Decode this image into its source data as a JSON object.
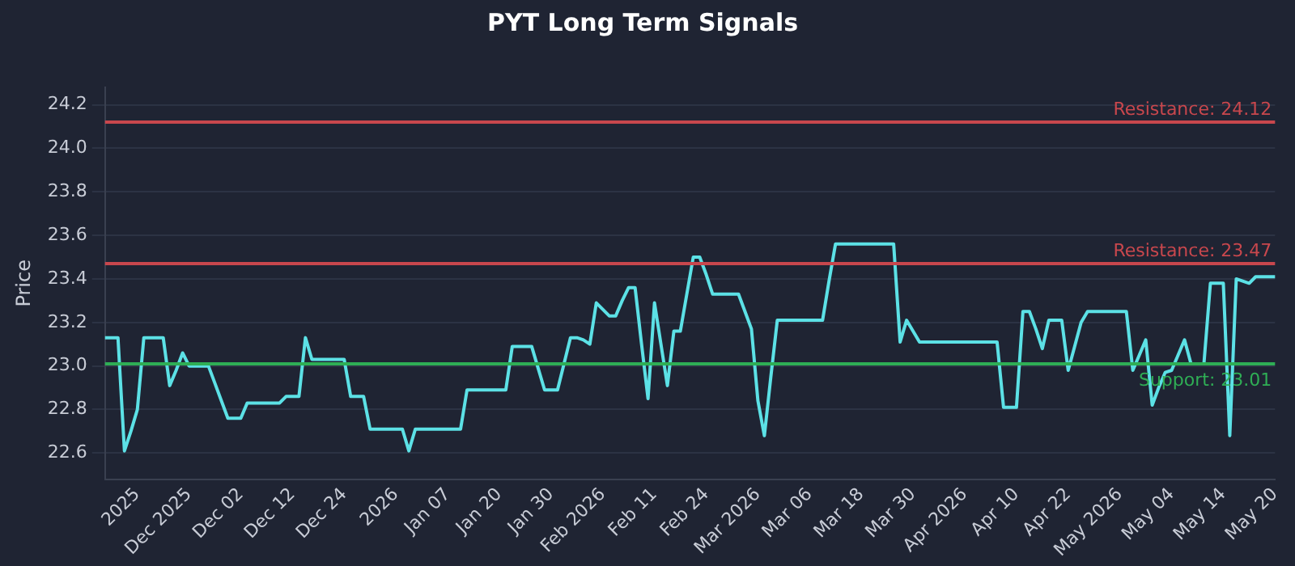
{
  "chart_data": {
    "type": "line",
    "title": "PYT Long Term Signals",
    "ylabel": "Price",
    "categories": [
      null,
      null,
      null,
      null,
      null,
      "2025",
      null,
      null,
      null,
      null,
      null,
      null,
      null,
      "Dec 2025",
      null,
      null,
      null,
      null,
      null,
      null,
      null,
      "Dec 02",
      null,
      null,
      null,
      null,
      null,
      null,
      null,
      "Dec 12",
      null,
      null,
      null,
      null,
      null,
      null,
      null,
      "Dec 24",
      null,
      null,
      null,
      null,
      null,
      null,
      null,
      "2026",
      null,
      null,
      null,
      null,
      null,
      null,
      null,
      "Jan 07",
      null,
      null,
      null,
      null,
      null,
      null,
      null,
      "Jan 20",
      null,
      null,
      null,
      null,
      null,
      null,
      null,
      "Jan 30",
      null,
      null,
      null,
      null,
      null,
      null,
      null,
      "Feb 2026",
      null,
      null,
      null,
      null,
      null,
      null,
      null,
      "Feb 11",
      null,
      null,
      null,
      null,
      null,
      null,
      null,
      "Feb 24",
      null,
      null,
      null,
      null,
      null,
      null,
      null,
      "Mar 2026",
      null,
      null,
      null,
      null,
      null,
      null,
      null,
      "Mar 06",
      null,
      null,
      null,
      null,
      null,
      null,
      null,
      "Mar 18",
      null,
      null,
      null,
      null,
      null,
      null,
      null,
      "Mar 30",
      null,
      null,
      null,
      null,
      null,
      null,
      null,
      "Apr 2026",
      null,
      null,
      null,
      null,
      null,
      null,
      null,
      "Apr 10",
      null,
      null,
      null,
      null,
      null,
      null,
      null,
      "Apr 22",
      null,
      null,
      null,
      null,
      null,
      null,
      null,
      "May 2026",
      null,
      null,
      null,
      null,
      null,
      null,
      null,
      "May 04",
      null,
      null,
      null,
      null,
      null,
      null,
      null,
      "May 14",
      null,
      null,
      null,
      null,
      null,
      null,
      null,
      "May 20"
    ],
    "ylim": [
      22.48,
      24.28
    ],
    "yticks": [
      22.6,
      22.8,
      {
        "value": 23,
        "label": "23.0"
      },
      23.2,
      23.4,
      23.6,
      23.8,
      {
        "value": 24,
        "label": "24.0"
      },
      24.2
    ],
    "grid": "y",
    "legend": false,
    "marker": "none",
    "line_style": "solid",
    "series": [
      {
        "color": "#5ce1e6",
        "values": [
          23.13,
          23.13,
          23.13,
          22.61,
          22.7,
          22.8,
          23.13,
          23.13,
          23.13,
          23.13,
          22.91,
          22.98,
          23.06,
          23.0,
          23.0,
          23.0,
          23.0,
          22.92,
          22.84,
          22.76,
          22.76,
          22.76,
          22.83,
          22.83,
          22.83,
          22.83,
          22.83,
          22.83,
          22.86,
          22.86,
          22.86,
          23.13,
          23.03,
          23.03,
          23.03,
          23.03,
          23.03,
          23.03,
          22.86,
          22.86,
          22.86,
          22.71,
          22.71,
          22.71,
          22.71,
          22.71,
          22.71,
          22.61,
          22.71,
          22.71,
          22.71,
          22.71,
          22.71,
          22.71,
          22.71,
          22.71,
          22.89,
          22.89,
          22.89,
          22.89,
          22.89,
          22.89,
          22.89,
          23.09,
          23.09,
          23.09,
          23.09,
          22.99,
          22.89,
          22.89,
          22.89,
          23.01,
          23.13,
          23.13,
          23.12,
          23.1,
          23.29,
          23.26,
          23.23,
          23.23,
          23.3,
          23.36,
          23.36,
          23.1,
          22.85,
          23.29,
          23.1,
          22.91,
          23.16,
          23.16,
          23.33,
          23.5,
          23.5,
          23.42,
          23.33,
          23.33,
          23.33,
          23.33,
          23.33,
          23.25,
          23.17,
          22.84,
          22.68,
          22.95,
          23.21,
          23.21,
          23.21,
          23.21,
          23.21,
          23.21,
          23.21,
          23.21,
          23.39,
          23.56,
          23.56,
          23.56,
          23.56,
          23.56,
          23.56,
          23.56,
          23.56,
          23.56,
          23.56,
          23.11,
          23.21,
          23.16,
          23.11,
          23.11,
          23.11,
          23.11,
          23.11,
          23.11,
          23.11,
          23.11,
          23.11,
          23.11,
          23.11,
          23.11,
          23.11,
          22.81,
          22.81,
          22.81,
          23.25,
          23.25,
          23.17,
          23.08,
          23.21,
          23.21,
          23.21,
          22.98,
          23.09,
          23.2,
          23.25,
          23.25,
          23.25,
          23.25,
          23.25,
          23.25,
          23.25,
          22.98,
          23.05,
          23.12,
          22.82,
          22.9,
          22.97,
          22.98,
          23.05,
          23.12,
          23.01,
          23.01,
          23.01,
          23.38,
          23.38,
          23.38,
          22.68,
          23.4,
          23.39,
          23.38,
          23.41,
          23.41,
          23.41,
          23.41
        ]
      }
    ],
    "ref_lines": [
      {
        "axis": "y",
        "value": 24.12,
        "label": "Resistance: 24.12",
        "color": "#c8474d"
      },
      {
        "axis": "y",
        "value": 23.47,
        "label": "Resistance: 23.47",
        "color": "#c8474d"
      },
      {
        "axis": "y",
        "value": 23.01,
        "label": "Support: 23.01",
        "color": "#2fae55"
      }
    ]
  }
}
